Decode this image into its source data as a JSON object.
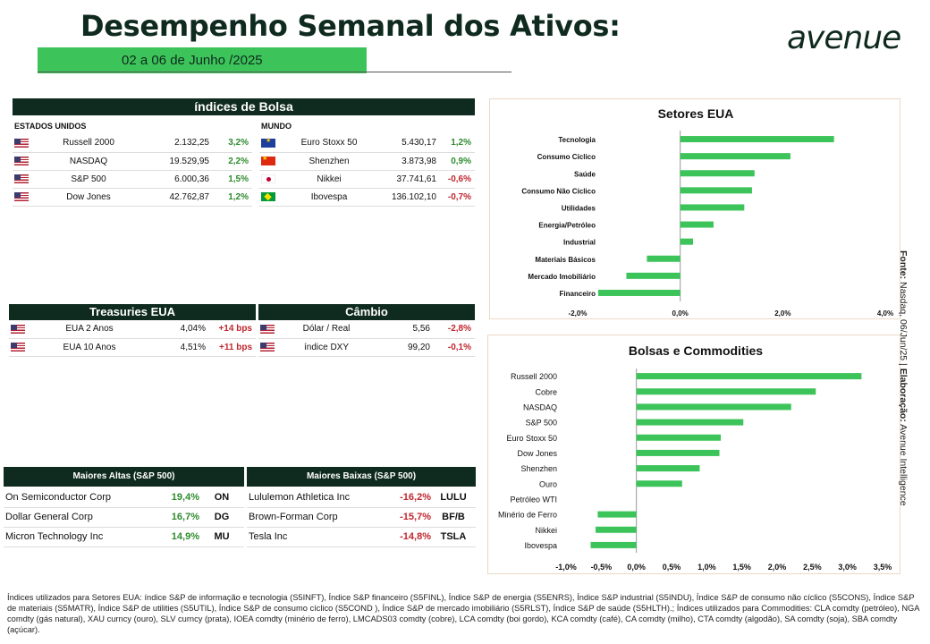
{
  "header": {
    "title": "Desempenho Semanal dos Ativos:",
    "date_range": "02 a 06 de Junho /2025",
    "logo": "AVENUE"
  },
  "indices": {
    "title": "índices de Bolsa",
    "us_label": "ESTADOS UNIDOS",
    "world_label": "MUNDO",
    "us_rows": [
      {
        "flag": "us-flag",
        "name": "Russell 2000",
        "value": "2.132,25",
        "change": "3,2%",
        "dir": "pos"
      },
      {
        "flag": "us-flag",
        "name": "NASDAQ",
        "value": "19.529,95",
        "change": "2,2%",
        "dir": "pos"
      },
      {
        "flag": "us-flag",
        "name": "S&P 500",
        "value": "6.000,36",
        "change": "1,5%",
        "dir": "pos"
      },
      {
        "flag": "us-flag",
        "name": "Dow Jones",
        "value": "42.762,87",
        "change": "1,2%",
        "dir": "pos"
      }
    ],
    "world_rows": [
      {
        "flag": "eu-flag",
        "name": "Euro Stoxx 50",
        "value": "5.430,17",
        "change": "1,2%",
        "dir": "pos"
      },
      {
        "flag": "cn-flag",
        "name": "Shenzhen",
        "value": "3.873,98",
        "change": "0,9%",
        "dir": "pos"
      },
      {
        "flag": "jp-flag",
        "name": "Nikkei",
        "value": "37.741,61",
        "change": "-0,6%",
        "dir": "neg"
      },
      {
        "flag": "br-flag",
        "name": "Ibovespa",
        "value": "136.102,10",
        "change": "-0,7%",
        "dir": "neg"
      }
    ]
  },
  "treasuries": {
    "title": "Treasuries EUA",
    "rows": [
      {
        "flag": "us-flag",
        "name": "EUA 2 Anos",
        "value": "4,04%",
        "change": "+14 bps"
      },
      {
        "flag": "us-flag",
        "name": "EUA 10 Anos",
        "value": "4,51%",
        "change": "+11 bps"
      }
    ]
  },
  "cambio": {
    "title": "Câmbio",
    "rows": [
      {
        "flag": "us-flag",
        "name": "Dólar / Real",
        "value": "5,56",
        "change": "-2,8%"
      },
      {
        "flag": "us-flag",
        "name": "índice DXY",
        "value": "99,20",
        "change": "-0,1%"
      }
    ]
  },
  "top_gainers": {
    "title": "Maiores Altas (S&P 500)",
    "rows": [
      {
        "name": "On Semiconductor Corp",
        "change": "19,4%",
        "ticker": "ON"
      },
      {
        "name": "Dollar General Corp",
        "change": "16,7%",
        "ticker": "DG"
      },
      {
        "name": "Micron Technology Inc",
        "change": "14,9%",
        "ticker": "MU"
      }
    ]
  },
  "top_losers": {
    "title": "Maiores Baixas (S&P 500)",
    "rows": [
      {
        "name": "Lululemon Athletica Inc",
        "change": "-16,2%",
        "ticker": "LULU"
      },
      {
        "name": "Brown-Forman Corp",
        "change": "-15,7%",
        "ticker": "BF/B"
      },
      {
        "name": "Tesla Inc",
        "change": "-14,8%",
        "ticker": "TSLA"
      }
    ]
  },
  "source_text": {
    "label": "Fonte:",
    "source": " Nasdaq, 06/Jun/25 | ",
    "label2": "Elaboração:",
    "elab": " Avenue Intelligence"
  },
  "footnote": "Índices utilizados para Setores EUA: índice S&P de informação e tecnologia (S5INFT), Índice S&P financeiro (S5FINL), Índice S&P de energia (S5ENRS), Índice S&P industrial (S5INDU), Índice S&P de consumo não cíclico (S5CONS), Índice S&P de materiais (S5MATR), Índice S&P de utilities (S5UTIL), Índice S&P de consumo cíclico (S5COND ), Índice S&P de mercado imobiliário (S5RLST), Índice S&P de saúde (S5HLTH).; Índices utilizados para Commodities: CLA comdty (petróleo), NGA comdty (gás natural), XAU curncy (ouro), SLV curncy (prata), IOEA comdty (minério de ferro), LMCADS03 comdty (cobre), LCA comdty (boi gordo), KCA comdty (café), CA comdty (milho), CTA comdty (algodão), SA comdty (soja), SBA comdty (açúcar).",
  "colors": {
    "bar": "#3cc45a",
    "dark": "#0f2a1e",
    "neg": "#c0262d",
    "pos": "#2e8b2e"
  },
  "chart_data": [
    {
      "type": "bar",
      "orientation": "horizontal",
      "title": "Setores EUA",
      "categories": [
        "Tecnologia",
        "Consumo Cíclico",
        "Saúde",
        "Consumo Não Cíclico",
        "Utilidades",
        "Energia/Petróleo",
        "Industrial",
        "Materiais Básicos",
        "Mercado Imobiliário",
        "Financeiro"
      ],
      "values": [
        3.0,
        2.15,
        1.45,
        1.4,
        1.25,
        0.65,
        0.25,
        -0.65,
        -1.05,
        -1.6
      ],
      "xlim": [
        -2.0,
        4.0
      ],
      "xticks": [
        "-2,0%",
        "0,0%",
        "2,0%",
        "4,0%"
      ],
      "grid": false
    },
    {
      "type": "bar",
      "orientation": "horizontal",
      "title": "Bolsas e Commodities",
      "categories": [
        "Russell 2000",
        "Cobre",
        "NASDAQ",
        "S&P 500",
        "Euro Stoxx 50",
        "Dow Jones",
        "Shenzhen",
        "Ouro",
        "Petróleo WTI",
        "Minério de Ferro",
        "Nikkei",
        "Ibovespa"
      ],
      "values": [
        3.2,
        2.55,
        2.2,
        1.52,
        1.2,
        1.18,
        0.9,
        0.65,
        0.0,
        -0.55,
        -0.58,
        -0.65
      ],
      "xlim": [
        -1.0,
        3.5
      ],
      "xticks": [
        "-1,0%",
        "-0,5%",
        "0,0%",
        "0,5%",
        "1,0%",
        "1,5%",
        "2,0%",
        "2,5%",
        "3,0%",
        "3,5%"
      ],
      "grid": false
    }
  ]
}
